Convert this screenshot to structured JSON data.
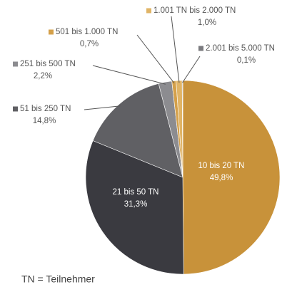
{
  "chart_data": {
    "type": "pie",
    "categories": [
      "10 bis 20 TN",
      "21 bis 50 TN",
      "51 bis 250 TN",
      "251 bis 500 TN",
      "501 bis 1.000 TN",
      "1.001 TN bis 2.000 TN",
      "2.001 bis 5.000 TN"
    ],
    "values": [
      49.8,
      31.3,
      14.8,
      2.2,
      0.7,
      1.0,
      0.1
    ],
    "value_labels": [
      "49,8%",
      "31,3%",
      "14,8%",
      "2,2%",
      "0,7%",
      "1,0%",
      "0,1%"
    ],
    "colors": [
      "#c8923a",
      "#3a3a40",
      "#606064",
      "#8c8c90",
      "#d4a04a",
      "#e0b466",
      "#7a7a7e"
    ],
    "annotation": "TN = Teilnehmer"
  }
}
